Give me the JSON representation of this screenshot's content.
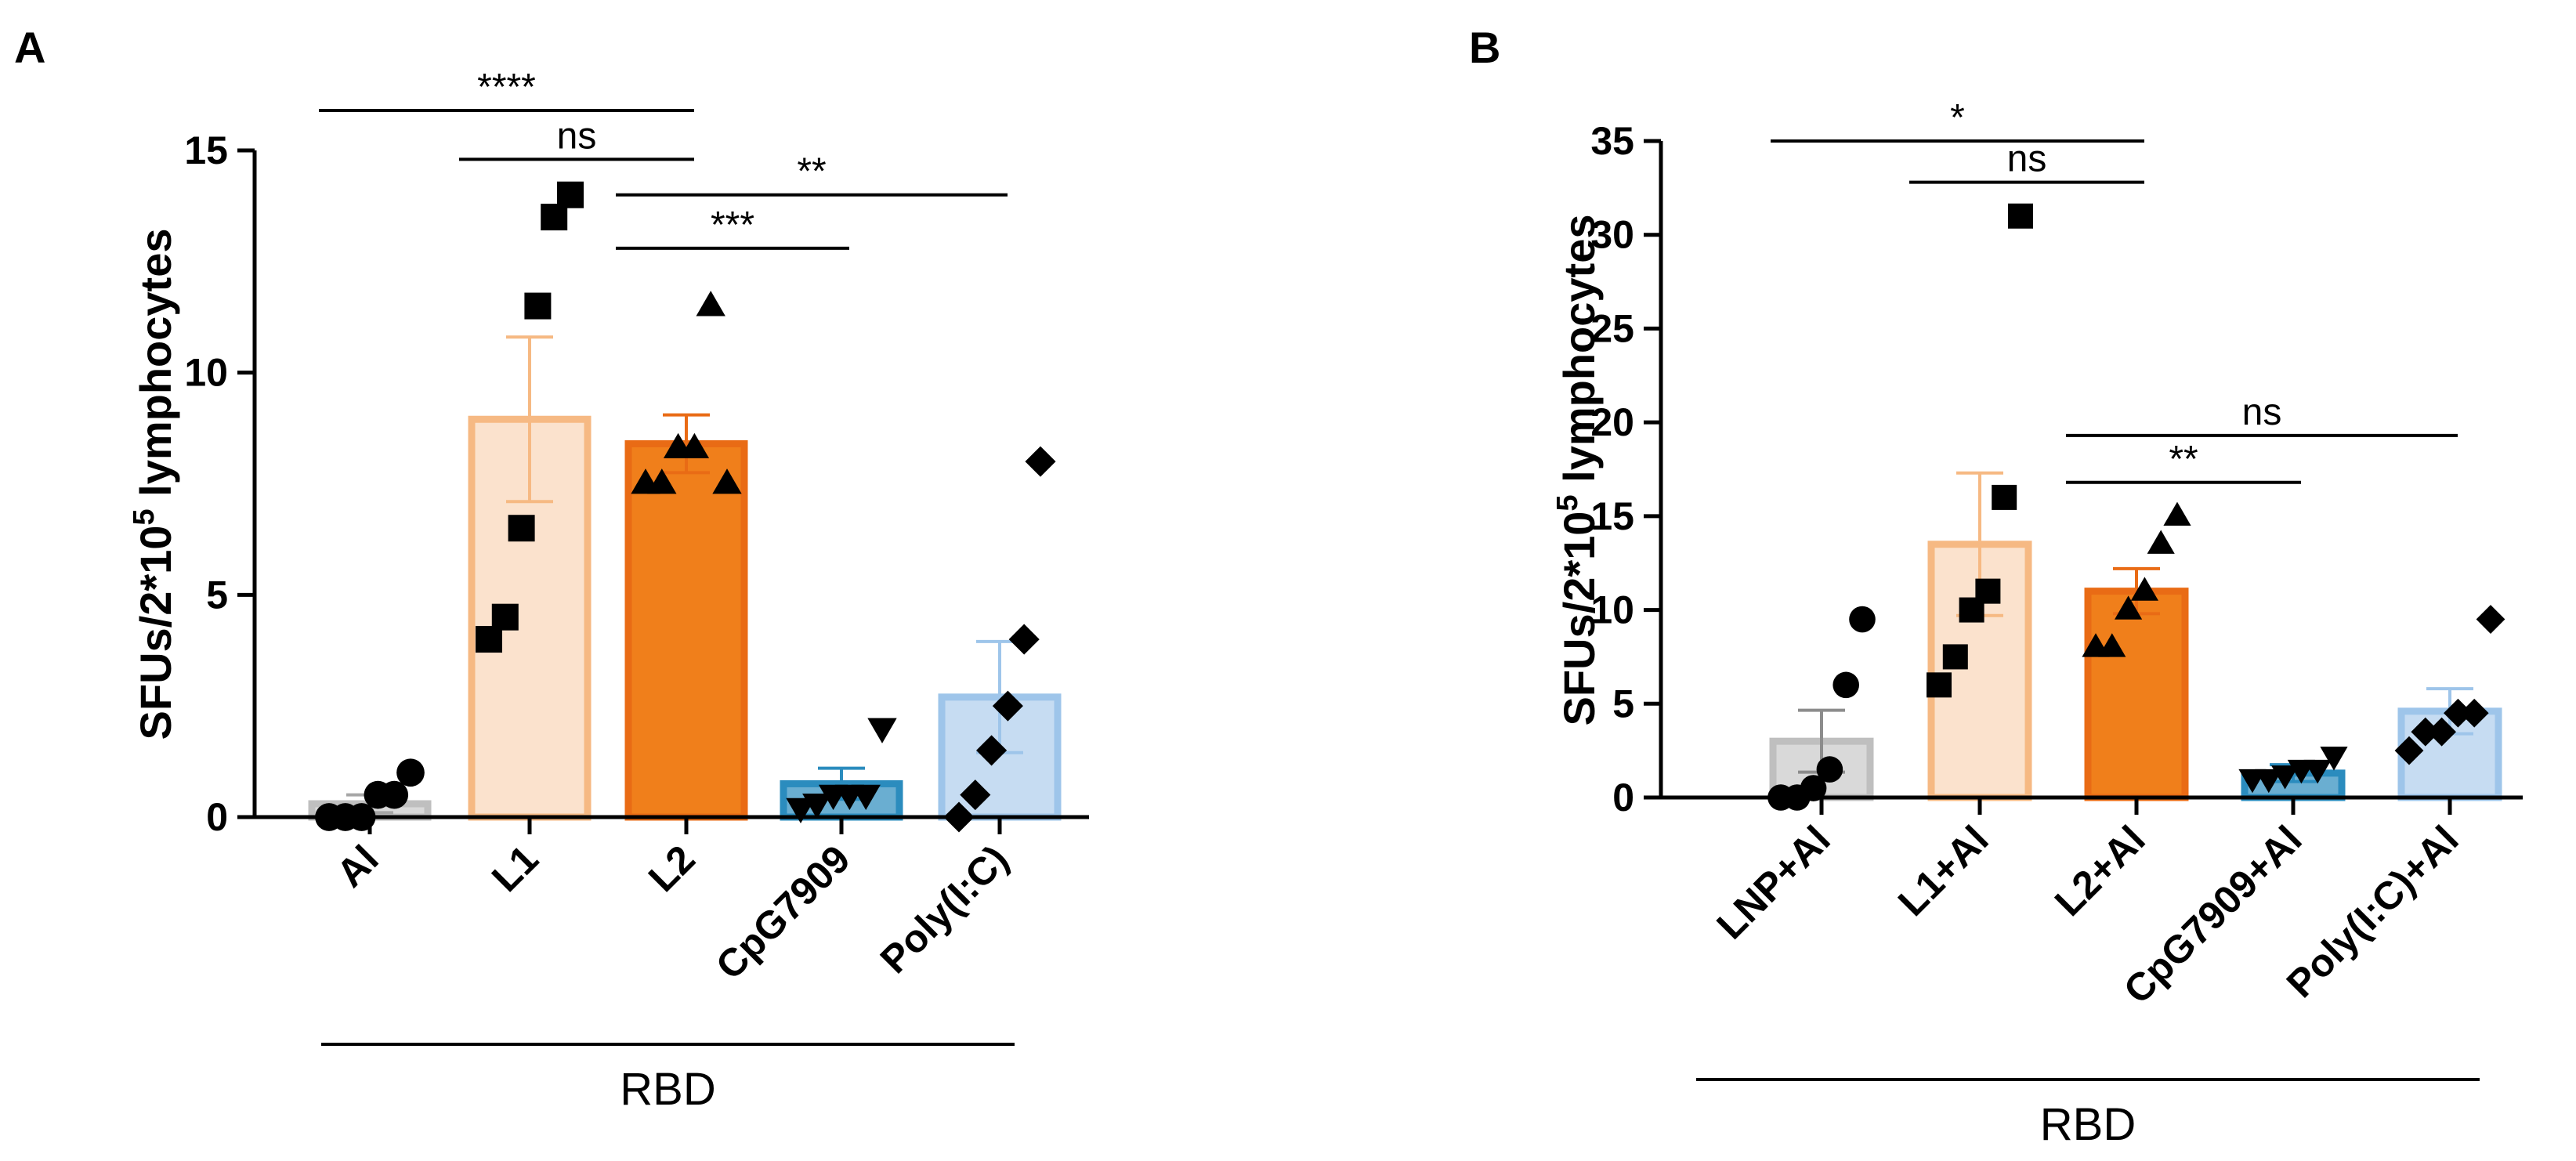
{
  "chart_data": [
    {
      "panel": "A",
      "type": "bar",
      "ylabel": "SFUs/2*10^5 lymphocytes",
      "ylabel_parts": {
        "base": "SFUs/2*10",
        "sup": "5",
        "tail": " lymphocytes"
      },
      "ylim": [
        0,
        15
      ],
      "yticks": [
        0,
        5,
        10,
        15
      ],
      "categories": [
        "Al",
        "L1",
        "L2",
        "CpG7909",
        "Poly(I:C)"
      ],
      "group_label": "RBD",
      "bars": [
        {
          "category": "Al",
          "mean": 0.3,
          "sem": 0.2,
          "fill": "#d9d9d9",
          "edge": "#bfbfbf",
          "err": "#a6a6a6",
          "marker": "circle",
          "points": [
            0.0,
            0.0,
            0.0,
            0.5,
            0.5,
            1.0
          ]
        },
        {
          "category": "L1",
          "mean": 8.95,
          "sem": 1.85,
          "fill": "#fbe2cd",
          "edge": "#f6b983",
          "err": "#f6b983",
          "marker": "square",
          "points": [
            4.0,
            4.5,
            6.5,
            11.5,
            13.5,
            14.0
          ]
        },
        {
          "category": "L2",
          "mean": 8.4,
          "sem": 0.65,
          "fill": "#f07f1b",
          "edge": "#e96b15",
          "err": "#e96b15",
          "marker": "triangle",
          "points": [
            7.5,
            7.5,
            8.3,
            8.3,
            11.5,
            7.5
          ]
        },
        {
          "category": "CpG7909",
          "mean": 0.75,
          "sem": 0.35,
          "fill": "#6aaed1",
          "edge": "#2b8cbe",
          "err": "#2b8cbe",
          "marker": "triangle-down",
          "points": [
            0.2,
            0.3,
            0.5,
            0.5,
            0.5,
            2.0
          ]
        },
        {
          "category": "Poly(I:C)",
          "mean": 2.7,
          "sem": 1.25,
          "fill": "#c6dcf2",
          "edge": "#9ec5ea",
          "err": "#9ec5ea",
          "marker": "diamond",
          "points": [
            0.0,
            0.5,
            1.5,
            2.5,
            4.0,
            8.0
          ]
        }
      ],
      "significance": [
        {
          "from": "Al",
          "to": "L2",
          "label": "****",
          "y": 15.9
        },
        {
          "from": "L1",
          "to": "L2",
          "label": "ns",
          "y": 14.8
        },
        {
          "from": "L2",
          "to": "Poly(I:C)",
          "label": "**",
          "y": 14.0
        },
        {
          "from": "L2",
          "to": "CpG7909",
          "label": "***",
          "y": 12.8
        }
      ]
    },
    {
      "panel": "B",
      "type": "bar",
      "ylabel": "SFUs/2*10^5 lymphocytes",
      "ylabel_parts": {
        "base": "SFUs/2*10",
        "sup": "5",
        "tail": " lymphocytes"
      },
      "ylim": [
        0,
        35
      ],
      "yticks": [
        0,
        5,
        10,
        15,
        20,
        25,
        30,
        35
      ],
      "categories": [
        "LNP+Al",
        "L1+Al",
        "L2+Al",
        "CpG7909+Al",
        "Poly(I:C)+Al"
      ],
      "group_label": "RBD",
      "bars": [
        {
          "category": "LNP+Al",
          "mean": 3.0,
          "sem": 1.65,
          "fill": "#d9d9d9",
          "edge": "#bfbfbf",
          "err": "#8c8c8c",
          "marker": "circle",
          "points": [
            0.0,
            0.0,
            0.5,
            1.5,
            6.0,
            9.5
          ]
        },
        {
          "category": "L1+Al",
          "mean": 13.5,
          "sem": 3.8,
          "fill": "#fbe2cd",
          "edge": "#f6b983",
          "err": "#f6b983",
          "marker": "square",
          "points": [
            6.0,
            7.5,
            10.0,
            11.0,
            16.0,
            31.0
          ]
        },
        {
          "category": "L2+Al",
          "mean": 11.0,
          "sem": 1.2,
          "fill": "#f07f1b",
          "edge": "#e96b15",
          "err": "#e96b15",
          "marker": "triangle",
          "points": [
            8.0,
            8.0,
            10.0,
            11.0,
            13.5,
            15.0
          ]
        },
        {
          "category": "CpG7909+Al",
          "mean": 1.3,
          "sem": 0.45,
          "fill": "#6aaed1",
          "edge": "#2b8cbe",
          "err": "#2b8cbe",
          "marker": "triangle-down",
          "points": [
            1.0,
            1.0,
            1.2,
            1.5,
            1.5,
            2.2
          ]
        },
        {
          "category": "Poly(I:C)+Al",
          "mean": 4.6,
          "sem": 1.2,
          "fill": "#c6dcf2",
          "edge": "#9ec5ea",
          "err": "#9ec5ea",
          "marker": "diamond",
          "points": [
            2.5,
            3.5,
            3.5,
            4.5,
            4.5,
            9.5
          ]
        }
      ],
      "significance": [
        {
          "from": "LNP+Al",
          "to": "L2+Al",
          "label": "*",
          "y": 35.0
        },
        {
          "from": "L1+Al",
          "to": "L2+Al",
          "label": "ns",
          "y": 32.8
        },
        {
          "from": "L2+Al",
          "to": "Poly(I:C)+Al",
          "label": "ns",
          "y": 19.3
        },
        {
          "from": "L2+Al",
          "to": "CpG7909+Al",
          "label": "**",
          "y": 16.8
        }
      ]
    }
  ]
}
